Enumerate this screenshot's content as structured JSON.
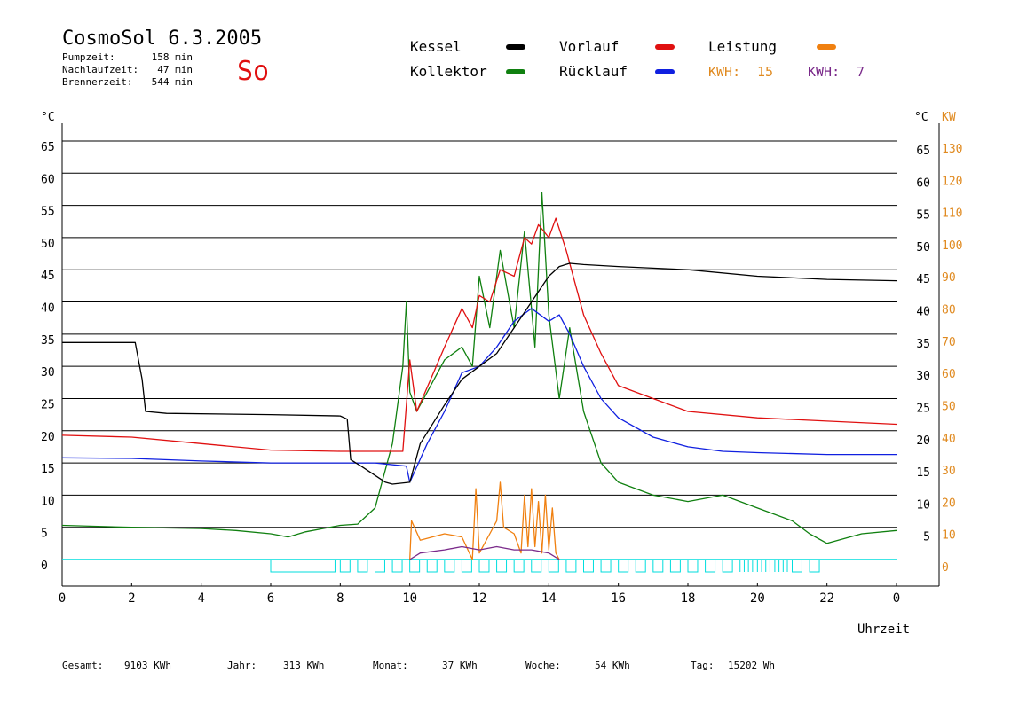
{
  "header": {
    "title": "CosmoSol 6.3.2005",
    "day": "So",
    "stats": [
      {
        "label": "Pumpzeit:",
        "value": "158 min"
      },
      {
        "label": "Nachlaufzeit:",
        "value": "47 min"
      },
      {
        "label": "Brennerzeit:",
        "value": "544 min"
      }
    ]
  },
  "legend": {
    "items": [
      {
        "label": "Kessel",
        "color": "#000000"
      },
      {
        "label": "Vorlauf",
        "color": "#e01010"
      },
      {
        "label": "Leistung",
        "color": "#f08010"
      },
      {
        "label": "Kollektor",
        "color": "#108010"
      },
      {
        "label": "Rücklauf",
        "color": "#1020e0"
      }
    ],
    "kwh": [
      {
        "label": "KWH:",
        "value": "15",
        "color": "#e08a20"
      },
      {
        "label": "KWH:",
        "value": "7",
        "color": "#7a2a8a"
      }
    ]
  },
  "axes": {
    "y_left_unit": "°C",
    "y_right_unit": "°C",
    "y_right2_unit": "KW",
    "x_label": "Uhrzeit",
    "x_ticks": [
      "0",
      "2",
      "4",
      "6",
      "8",
      "10",
      "12",
      "14",
      "16",
      "18",
      "20",
      "22",
      "0"
    ],
    "y_left_ticks": [
      "0",
      "5",
      "10",
      "15",
      "20",
      "25",
      "30",
      "35",
      "40",
      "45",
      "50",
      "55",
      "60",
      "65"
    ],
    "y_right_ticks": [
      "5",
      "10",
      "15",
      "20",
      "25",
      "30",
      "35",
      "40",
      "45",
      "50",
      "55",
      "60",
      "65"
    ],
    "y_right2_ticks": [
      "0",
      "10",
      "20",
      "30",
      "40",
      "50",
      "60",
      "70",
      "80",
      "90",
      "100",
      "110",
      "120",
      "130"
    ]
  },
  "footer": [
    {
      "label": "Gesamt:",
      "value": "9103 KWh"
    },
    {
      "label": "Jahr:",
      "value": "313 KWh"
    },
    {
      "label": "Monat:",
      "value": "37 KWh"
    },
    {
      "label": "Woche:",
      "value": "54 KWh"
    },
    {
      "label": "Tag:",
      "value": "15202 Wh"
    }
  ],
  "colors": {
    "kessel": "#000000",
    "vorlauf": "#e01010",
    "ruecklauf": "#1020e0",
    "kollektor": "#108010",
    "leistung": "#f08010",
    "leistung2": "#7a2a8a",
    "pump": "#00dede",
    "kwh_axis": "#e08a20"
  },
  "chart_data": {
    "type": "line",
    "title": "CosmoSol 6.3.2005",
    "xlabel": "Uhrzeit",
    "ylabel": "°C",
    "xlim": [
      0,
      24
    ],
    "ylim": [
      0,
      65
    ],
    "y2lim": [
      0,
      130
    ],
    "grid": true,
    "series": [
      {
        "name": "Kessel",
        "x": [
          0,
          2.1,
          2.3,
          2.4,
          3,
          6,
          8,
          8.2,
          8.3,
          8.6,
          9.3,
          9.5,
          10,
          10.3,
          11,
          11.5,
          12,
          12.5,
          13,
          13.5,
          14,
          14.3,
          14.6,
          15,
          16,
          18,
          20,
          22,
          24
        ],
        "y": [
          33.7,
          33.7,
          28,
          23,
          22.7,
          22.5,
          22.3,
          21.8,
          15.5,
          14.5,
          12,
          11.7,
          12,
          18,
          24,
          28,
          30,
          32,
          36,
          40,
          44,
          45.5,
          46,
          45.8,
          45.5,
          45,
          44,
          43.5,
          43.3
        ]
      },
      {
        "name": "Vorlauf",
        "x": [
          0,
          2,
          4,
          6,
          8,
          9,
          9.8,
          10,
          10.2,
          10.6,
          11,
          11.5,
          11.8,
          12,
          12.3,
          12.6,
          13,
          13.3,
          13.5,
          13.7,
          14,
          14.2,
          14.5,
          15,
          15.5,
          16,
          17,
          18,
          20,
          22,
          24
        ],
        "y": [
          19.3,
          19,
          18,
          17,
          16.8,
          16.8,
          16.8,
          31,
          23,
          28,
          33,
          39,
          36,
          41,
          40,
          45,
          44,
          50,
          49,
          52,
          50,
          53,
          48,
          38,
          32,
          27,
          25,
          23,
          22,
          21.5,
          21
        ]
      },
      {
        "name": "Rücklauf",
        "x": [
          0,
          2,
          4,
          6,
          8,
          9,
          9.9,
          10,
          10.5,
          11,
          11.5,
          12,
          12.5,
          13,
          13.5,
          14,
          14.3,
          14.6,
          15,
          15.5,
          16,
          17,
          18,
          19,
          20,
          22,
          24
        ],
        "y": [
          15.8,
          15.7,
          15.3,
          15,
          15,
          15,
          14.5,
          12,
          18,
          23,
          29,
          30,
          33,
          37,
          39,
          37,
          38,
          35,
          30,
          25,
          22,
          19,
          17.5,
          16.8,
          16.6,
          16.3,
          16.3
        ]
      },
      {
        "name": "Kollektor",
        "x": [
          0,
          2,
          4,
          5,
          6,
          6.5,
          7,
          8,
          8.5,
          9,
          9.5,
          9.8,
          9.9,
          10,
          10.2,
          10.6,
          11,
          11.5,
          11.8,
          12,
          12.3,
          12.6,
          13,
          13.3,
          13.6,
          13.8,
          14,
          14.3,
          14.6,
          15,
          15.5,
          16,
          17,
          18,
          19,
          20,
          21,
          21.5,
          22,
          23,
          24
        ],
        "y": [
          5.3,
          5,
          4.8,
          4.5,
          4,
          3.5,
          4.3,
          5.3,
          5.5,
          8,
          18,
          30,
          40,
          26,
          23,
          27,
          31,
          33,
          30,
          44,
          36,
          48,
          36,
          51,
          33,
          57,
          38,
          25,
          36,
          23,
          15,
          12,
          10,
          9,
          10,
          8,
          6,
          4,
          2.5,
          4,
          4.5
        ]
      },
      {
        "name": "Leistung",
        "x": [
          10,
          10.05,
          10.3,
          11,
          11.5,
          11.8,
          11.9,
          12,
          12.3,
          12.5,
          12.6,
          12.7,
          13,
          13.2,
          13.3,
          13.4,
          13.5,
          13.6,
          13.7,
          13.8,
          13.9,
          14,
          14.1,
          14.2,
          14.3
        ],
        "y2": [
          0,
          12,
          6,
          8,
          7,
          0,
          22,
          2,
          8,
          12,
          24,
          10,
          8,
          2,
          20,
          4,
          22,
          4,
          18,
          2,
          20,
          3,
          16,
          2,
          0
        ]
      },
      {
        "name": "KWH 7",
        "x": [
          10,
          10.3,
          11,
          11.5,
          12,
          12.5,
          13,
          13.5,
          14,
          14.3
        ],
        "y2": [
          0,
          2,
          3,
          4,
          3,
          4,
          3,
          3,
          2,
          0
        ]
      }
    ]
  }
}
